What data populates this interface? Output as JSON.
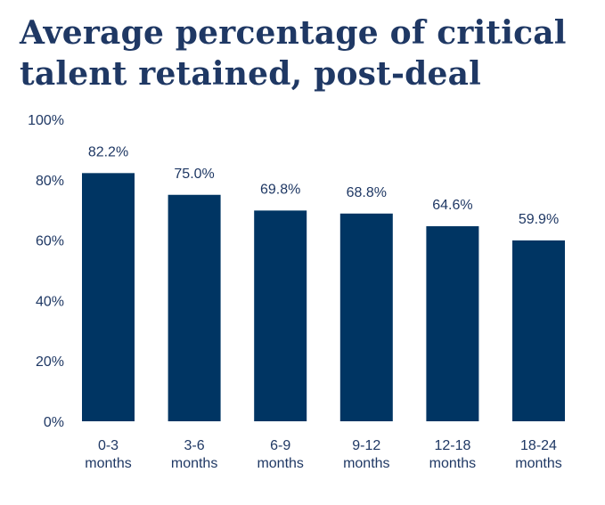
{
  "chart_data": {
    "type": "bar",
    "title": "Average percentage of critical talent retained, post-deal",
    "categories": [
      [
        "0-3",
        "months"
      ],
      [
        "3-6",
        "months"
      ],
      [
        "6-9",
        "months"
      ],
      [
        "9-12",
        "months"
      ],
      [
        "12-18",
        "months"
      ],
      [
        "18-24",
        "months"
      ]
    ],
    "values": [
      82.2,
      75.0,
      69.8,
      68.8,
      64.6,
      59.9
    ],
    "data_labels": [
      "82.2%",
      "75.0%",
      "69.8%",
      "68.8%",
      "64.6%",
      "59.9%"
    ],
    "yticks": [
      "0%",
      "20%",
      "40%",
      "60%",
      "80%",
      "100%"
    ],
    "ylim": [
      0,
      100
    ],
    "xlabel": "",
    "ylabel": "",
    "grid": false,
    "legend": "none",
    "bar_color": "#003563",
    "text_color": "#1f3864"
  }
}
